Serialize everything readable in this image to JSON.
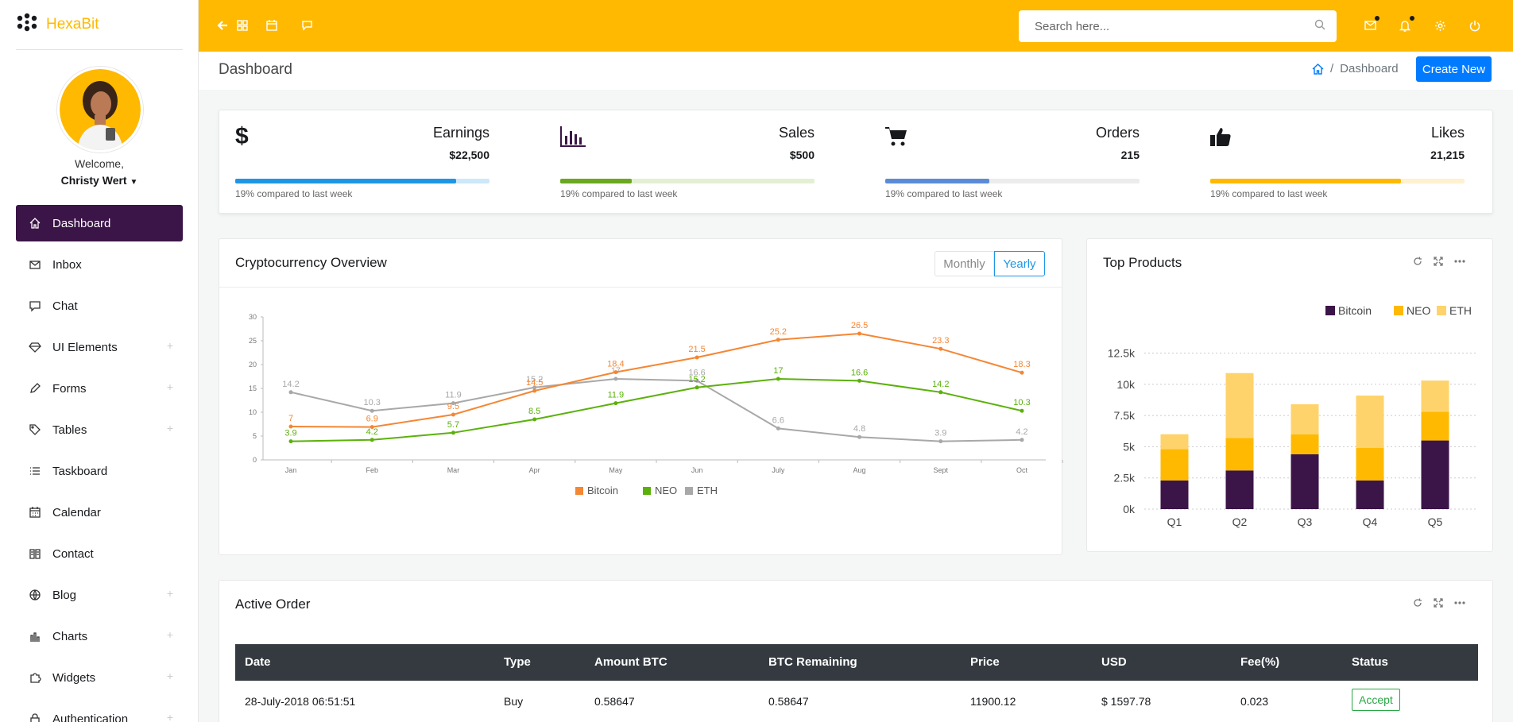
{
  "app": {
    "name": "HexaBit"
  },
  "user": {
    "welcome": "Welcome,",
    "name": "Christy Wert"
  },
  "sidebar": {
    "items": [
      {
        "label": "Dashboard",
        "icon": "home-icon",
        "active": true
      },
      {
        "label": "Inbox",
        "icon": "mail-icon"
      },
      {
        "label": "Chat",
        "icon": "chat-icon"
      },
      {
        "label": "UI Elements",
        "icon": "diamond-icon",
        "expandable": true
      },
      {
        "label": "Forms",
        "icon": "pencil-icon",
        "expandable": true
      },
      {
        "label": "Tables",
        "icon": "tag-icon",
        "expandable": true
      },
      {
        "label": "Taskboard",
        "icon": "list-icon"
      },
      {
        "label": "Calendar",
        "icon": "calendar-icon"
      },
      {
        "label": "Contact",
        "icon": "book-icon"
      },
      {
        "label": "Blog",
        "icon": "globe-icon",
        "expandable": true
      },
      {
        "label": "Charts",
        "icon": "chart-icon",
        "expandable": true
      },
      {
        "label": "Widgets",
        "icon": "puzzle-icon",
        "expandable": true
      },
      {
        "label": "Authentication",
        "icon": "lock-icon",
        "expandable": true
      }
    ]
  },
  "topbar": {
    "search_placeholder": "Search here..."
  },
  "page": {
    "title": "Dashboard",
    "breadcrumb": "Dashboard",
    "create_label": "Create New"
  },
  "stats": [
    {
      "label": "Earnings",
      "value": "$22,500",
      "note": "19% compared to last week",
      "progress": 0.87,
      "color": "#1e96e6",
      "track": "#cde8fa",
      "icon": "dollar-icon"
    },
    {
      "label": "Sales",
      "value": "$500",
      "note": "19% compared to last week",
      "progress": 0.28,
      "color": "#6aa820",
      "track": "#e3efd2",
      "icon": "bar-chart-icon"
    },
    {
      "label": "Orders",
      "value": "215",
      "note": "19% compared to last week",
      "progress": 0.41,
      "color": "#5b8bd6",
      "track": "#ececec",
      "icon": "cart-icon"
    },
    {
      "label": "Likes",
      "value": "21,215",
      "note": "19% compared to last week",
      "progress": 0.75,
      "color": "#ffb900",
      "track": "#fff0cf",
      "icon": "thumbs-up-icon"
    }
  ],
  "crypto": {
    "title": "Cryptocurrency Overview",
    "tabs": [
      "Monthly",
      "Yearly"
    ],
    "active_tab": "Yearly"
  },
  "products": {
    "title": "Top Products"
  },
  "orders": {
    "title": "Active Order",
    "columns": [
      "Date",
      "Type",
      "Amount BTC",
      "BTC Remaining",
      "Price",
      "USD",
      "Fee(%)",
      "Status"
    ],
    "rows": [
      [
        "28-July-2018 06:51:51",
        "Buy",
        "0.58647",
        "0.58647",
        "11900.12",
        "$ 1597.78",
        "0.023",
        "Accept"
      ]
    ]
  },
  "chart_data": [
    {
      "type": "line",
      "categories": [
        "Jan",
        "Feb",
        "Mar",
        "Apr",
        "May",
        "Jun",
        "July",
        "Aug",
        "Sept",
        "Oct"
      ],
      "ylim": [
        0,
        30
      ],
      "yticks": [
        0,
        5,
        10,
        15,
        20,
        25,
        30
      ],
      "legend": "bottom",
      "series": [
        {
          "name": "Bitcoin",
          "color": "#f58634",
          "values": [
            7,
            6.9,
            9.5,
            14.5,
            18.4,
            21.5,
            25.2,
            26.5,
            23.3,
            18.3
          ]
        },
        {
          "name": "NEO",
          "color": "#5bb10b",
          "values": [
            3.9,
            4.2,
            5.7,
            8.5,
            11.9,
            15.2,
            17,
            16.6,
            14.2,
            10.3
          ]
        },
        {
          "name": "ETH",
          "color": "#a8a8a8",
          "values": [
            14.2,
            10.3,
            11.9,
            15.2,
            17,
            16.6,
            6.6,
            4.8,
            3.9,
            4.2
          ]
        }
      ]
    },
    {
      "type": "bar",
      "stacked": true,
      "categories": [
        "Q1",
        "Q2",
        "Q3",
        "Q4",
        "Q5"
      ],
      "ylim": [
        0,
        14000
      ],
      "yticks": [
        "0k",
        "2.5k",
        "5k",
        "7.5k",
        "10k",
        "12.5k"
      ],
      "legend": "top-right",
      "series": [
        {
          "name": "Bitcoin",
          "color": "#3b1547",
          "values": [
            2300,
            3100,
            4400,
            2300,
            5500
          ]
        },
        {
          "name": "NEO",
          "color": "#ffb900",
          "values": [
            2500,
            2600,
            1600,
            2600,
            2300
          ]
        },
        {
          "name": "ETH",
          "color": "#ffd36b",
          "values": [
            1200,
            5200,
            2400,
            4200,
            2500
          ]
        }
      ]
    }
  ]
}
